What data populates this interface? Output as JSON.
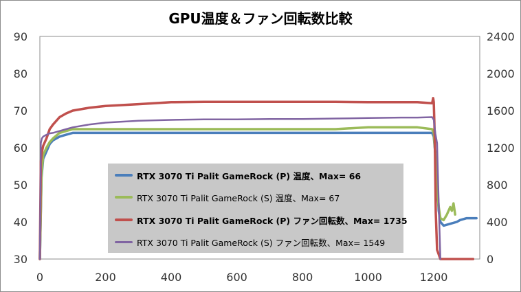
{
  "chart_data": {
    "type": "line",
    "title": "GPU温度＆ファン回転数比較",
    "xlabel": "",
    "ylabel": "",
    "ylabel_right": "",
    "xlim": [
      0,
      1340
    ],
    "xticks": [
      0,
      200,
      400,
      600,
      800,
      1000,
      1200
    ],
    "ylim": [
      30,
      90
    ],
    "yticks": [
      30,
      40,
      50,
      60,
      70,
      80,
      90
    ],
    "y2lim": [
      0,
      2400
    ],
    "y2ticks": [
      0,
      400,
      800,
      1200,
      1600,
      2000,
      2400
    ],
    "grid": false,
    "legend_position": "center-left",
    "series": [
      {
        "name": "RTX 3070 Ti Palit GameRock (P) 温度、Max= 66",
        "axis": "left",
        "color": "#4a7ebb",
        "bold_label": true,
        "width": 3.5,
        "x": [
          0,
          5,
          10,
          20,
          30,
          40,
          60,
          80,
          100,
          150,
          200,
          300,
          400,
          500,
          600,
          700,
          800,
          900,
          1000,
          1100,
          1150,
          1195,
          1200,
          1205,
          1210,
          1215,
          1220,
          1230,
          1250,
          1270,
          1280,
          1300,
          1320,
          1330
        ],
        "y": [
          30,
          52,
          57,
          59,
          61,
          62,
          63,
          63.5,
          64,
          64,
          64,
          64,
          64,
          64,
          64,
          64,
          64,
          64,
          64,
          64,
          64,
          64,
          63,
          58,
          50,
          43,
          40,
          39,
          39.5,
          40,
          40.5,
          41,
          41,
          41
        ]
      },
      {
        "name": "RTX 3070 Ti Palit GameRock (S) 温度、Max= 67",
        "axis": "left",
        "color": "#9bbb59",
        "bold_label": false,
        "width": 3.5,
        "x": [
          0,
          5,
          10,
          20,
          30,
          40,
          60,
          80,
          100,
          150,
          200,
          300,
          400,
          500,
          600,
          700,
          800,
          900,
          1000,
          1100,
          1150,
          1195,
          1200,
          1205,
          1210,
          1215,
          1220,
          1230,
          1240,
          1250,
          1255,
          1260,
          1265
        ],
        "y": [
          30,
          53,
          58,
          60,
          61.5,
          62.5,
          64,
          64.5,
          65,
          65,
          65,
          65,
          65,
          65,
          65,
          65,
          65,
          65,
          65.5,
          65.5,
          65.5,
          65,
          64,
          58,
          50,
          44,
          41,
          40.5,
          42,
          44,
          43,
          45,
          42
        ]
      },
      {
        "name": "RTX 3070 Ti Palit GameRock (P) ファン回転数、Max= 1735",
        "axis": "right",
        "color": "#c0504d",
        "bold_label": true,
        "width": 3.5,
        "x": [
          0,
          3,
          6,
          10,
          20,
          30,
          40,
          60,
          80,
          100,
          150,
          200,
          300,
          400,
          500,
          600,
          700,
          800,
          900,
          1000,
          1100,
          1150,
          1195,
          1198,
          1200,
          1203,
          1206,
          1210,
          1220,
          1240,
          1260,
          1280,
          1300,
          1320
        ],
        "y": [
          0,
          1050,
          1150,
          1220,
          1300,
          1400,
          1450,
          1530,
          1570,
          1600,
          1630,
          1650,
          1670,
          1690,
          1695,
          1695,
          1695,
          1695,
          1695,
          1690,
          1690,
          1690,
          1680,
          1735,
          1690,
          1300,
          500,
          100,
          0,
          0,
          0,
          0,
          0,
          0
        ]
      },
      {
        "name": "RTX 3070 Ti Palit GameRock (S) ファン回転数、Max= 1549",
        "axis": "right",
        "color": "#8064a2",
        "bold_label": false,
        "width": 2.5,
        "x": [
          0,
          3,
          6,
          10,
          20,
          30,
          40,
          60,
          80,
          100,
          150,
          200,
          300,
          400,
          500,
          600,
          700,
          800,
          900,
          1000,
          1100,
          1150,
          1195,
          1200,
          1205,
          1210,
          1215,
          1220
        ],
        "y": [
          0,
          1250,
          1300,
          1320,
          1340,
          1355,
          1360,
          1380,
          1400,
          1420,
          1450,
          1470,
          1490,
          1500,
          1505,
          1505,
          1510,
          1510,
          1515,
          1520,
          1525,
          1525,
          1530,
          1500,
          1350,
          1250,
          600,
          0
        ]
      }
    ]
  }
}
